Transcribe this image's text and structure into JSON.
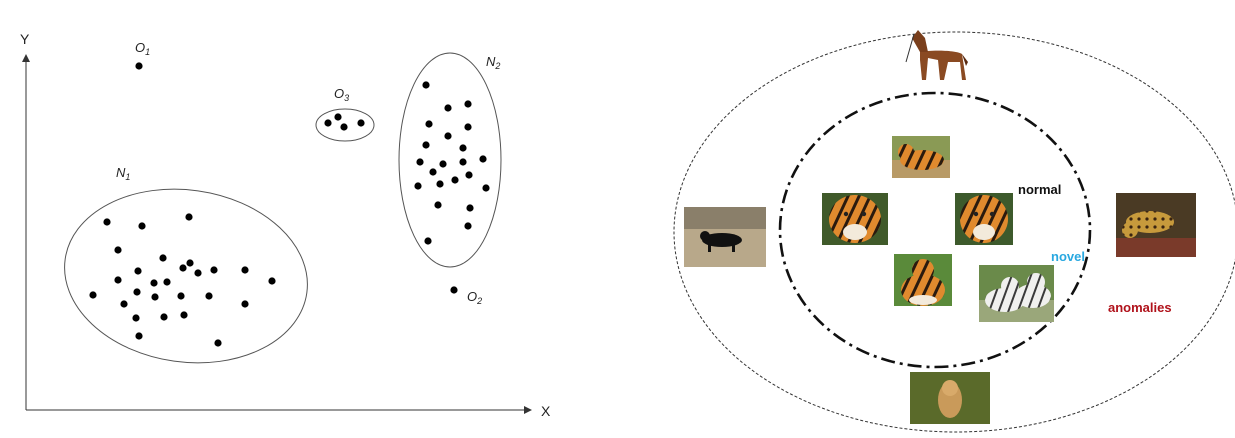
{
  "left_diagram": {
    "axes": {
      "y_label": "Y",
      "x_label": "X"
    },
    "region_labels": {
      "n1": {
        "main": "N",
        "sub": "1"
      },
      "n2": {
        "main": "N",
        "sub": "2"
      },
      "o1": {
        "main": "O",
        "sub": "1"
      },
      "o2": {
        "main": "O",
        "sub": "2"
      },
      "o3": {
        "main": "O",
        "sub": "3"
      }
    }
  },
  "right_diagram": {
    "labels": {
      "normal": "normal",
      "novel": "novel",
      "anomalies": "anomalies"
    },
    "colors": {
      "normal": "#111111",
      "novel": "#29a8e0",
      "anomalies": "#b0121b"
    },
    "images": [
      {
        "id": "horse-image"
      },
      {
        "id": "tiger-lying-image"
      },
      {
        "id": "tiger-face-left-image"
      },
      {
        "id": "tiger-face-right-image"
      },
      {
        "id": "tiger-sitting-image"
      },
      {
        "id": "white-tigers-image"
      },
      {
        "id": "black-panther-image"
      },
      {
        "id": "leopard-image"
      },
      {
        "id": "lion-image"
      }
    ]
  }
}
